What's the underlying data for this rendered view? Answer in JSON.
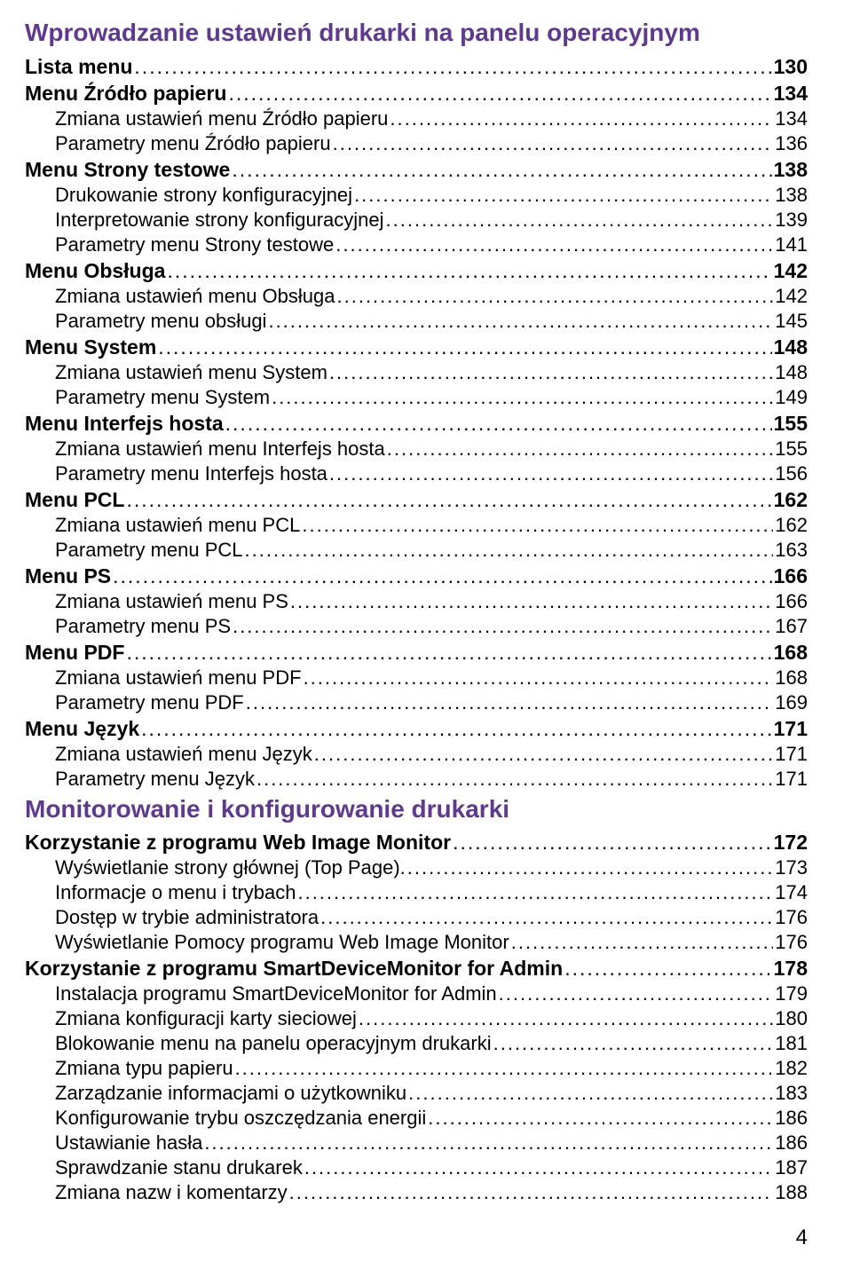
{
  "colors": {
    "section_title": "#5f3a8c",
    "text": "#000000",
    "background": "#ffffff"
  },
  "typography": {
    "section_title_fontsize": 28,
    "lvl1_fontsize": 23,
    "lvl2_fontsize": 22,
    "font_family": "Arial, Helvetica, sans-serif"
  },
  "page_number": "4",
  "sections": [
    {
      "title": "Wprowadzanie ustawień drukarki na panelu operacyjnym",
      "entries": [
        {
          "level": 1,
          "label": "Lista menu",
          "page": "130"
        },
        {
          "level": 1,
          "label": "Menu Źródło papieru",
          "page": "134"
        },
        {
          "level": 2,
          "label": "Zmiana ustawień menu Źródło papieru",
          "page": "134"
        },
        {
          "level": 2,
          "label": "Parametry menu Źródło papieru",
          "page": "136"
        },
        {
          "level": 1,
          "label": "Menu Strony testowe",
          "page": "138"
        },
        {
          "level": 2,
          "label": "Drukowanie strony konfiguracyjnej",
          "page": "138"
        },
        {
          "level": 2,
          "label": "Interpretowanie strony konfiguracyjnej",
          "page": "139"
        },
        {
          "level": 2,
          "label": "Parametry menu Strony testowe",
          "page": "141"
        },
        {
          "level": 1,
          "label": "Menu Obsługa",
          "page": "142"
        },
        {
          "level": 2,
          "label": "Zmiana ustawień menu Obsługa",
          "page": "142"
        },
        {
          "level": 2,
          "label": "Parametry menu obsługi",
          "page": "145"
        },
        {
          "level": 1,
          "label": "Menu System",
          "page": "148"
        },
        {
          "level": 2,
          "label": "Zmiana ustawień menu System",
          "page": "148"
        },
        {
          "level": 2,
          "label": "Parametry menu System",
          "page": "149"
        },
        {
          "level": 1,
          "label": "Menu Interfejs hosta",
          "page": "155"
        },
        {
          "level": 2,
          "label": "Zmiana ustawień menu Interfejs hosta",
          "page": "155"
        },
        {
          "level": 2,
          "label": "Parametry menu Interfejs hosta",
          "page": "156"
        },
        {
          "level": 1,
          "label": "Menu PCL",
          "page": "162"
        },
        {
          "level": 2,
          "label": "Zmiana ustawień menu PCL",
          "page": "162"
        },
        {
          "level": 2,
          "label": "Parametry menu PCL",
          "page": "163"
        },
        {
          "level": 1,
          "label": "Menu PS",
          "page": "166"
        },
        {
          "level": 2,
          "label": "Zmiana ustawień menu PS",
          "page": "166"
        },
        {
          "level": 2,
          "label": "Parametry menu PS",
          "page": "167"
        },
        {
          "level": 1,
          "label": "Menu PDF",
          "page": "168"
        },
        {
          "level": 2,
          "label": "Zmiana ustawień menu PDF",
          "page": "168"
        },
        {
          "level": 2,
          "label": "Parametry menu PDF",
          "page": "169"
        },
        {
          "level": 1,
          "label": "Menu Język",
          "page": "171"
        },
        {
          "level": 2,
          "label": "Zmiana ustawień menu Język",
          "page": "171"
        },
        {
          "level": 2,
          "label": "Parametry menu Język",
          "page": "171"
        }
      ]
    },
    {
      "title": "Monitorowanie i konfigurowanie drukarki",
      "entries": [
        {
          "level": 1,
          "label": "Korzystanie z programu Web Image Monitor",
          "page": "172"
        },
        {
          "level": 2,
          "label": "Wyświetlanie strony głównej (Top Page).",
          "page": "173"
        },
        {
          "level": 2,
          "label": "Informacje o menu i trybach",
          "page": "174"
        },
        {
          "level": 2,
          "label": "Dostęp w trybie administratora",
          "page": "176"
        },
        {
          "level": 2,
          "label": "Wyświetlanie Pomocy programu Web Image Monitor",
          "page": "176"
        },
        {
          "level": 1,
          "label": "Korzystanie z programu SmartDeviceMonitor for Admin",
          "page": "178"
        },
        {
          "level": 2,
          "label": "Instalacja programu SmartDeviceMonitor for Admin",
          "page": "179"
        },
        {
          "level": 2,
          "label": "Zmiana konfiguracji karty sieciowej",
          "page": "180"
        },
        {
          "level": 2,
          "label": "Blokowanie menu na panelu operacyjnym drukarki",
          "page": "181"
        },
        {
          "level": 2,
          "label": "Zmiana typu papieru",
          "page": "182"
        },
        {
          "level": 2,
          "label": "Zarządzanie informacjami o użytkowniku",
          "page": "183"
        },
        {
          "level": 2,
          "label": "Konfigurowanie trybu oszczędzania energii",
          "page": "186"
        },
        {
          "level": 2,
          "label": "Ustawianie hasła",
          "page": "186"
        },
        {
          "level": 2,
          "label": "Sprawdzanie stanu drukarek",
          "page": "187"
        },
        {
          "level": 2,
          "label": "Zmiana nazw i komentarzy",
          "page": "188"
        }
      ]
    }
  ]
}
